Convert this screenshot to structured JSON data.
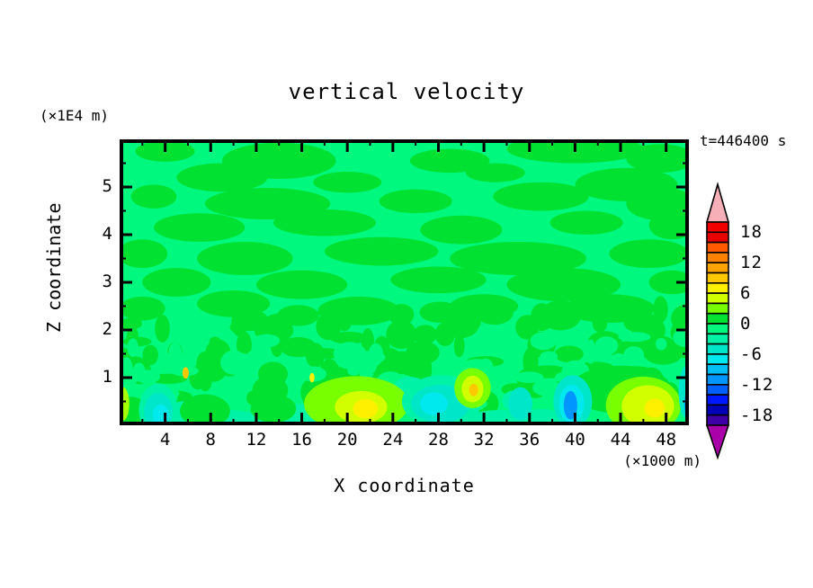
{
  "title": "vertical velocity",
  "time_label": "t=446400 s",
  "y_axis": {
    "label": "Z coordinate",
    "unit": "(×1E4 m)",
    "ticks": [
      "1",
      "2",
      "3",
      "4",
      "5"
    ]
  },
  "x_axis": {
    "label": "X coordinate",
    "unit": "(×1000 m)",
    "ticks": [
      "4",
      "8",
      "12",
      "16",
      "20",
      "24",
      "28",
      "32",
      "36",
      "40",
      "44",
      "48"
    ]
  },
  "colorbar": {
    "labels": [
      "18",
      "12",
      "6",
      "0",
      "-6",
      "-12",
      "-18"
    ],
    "colors": [
      "#F20000",
      "#E80000",
      "#FF5A00",
      "#FF8200",
      "#FFA300",
      "#FFC800",
      "#FFF000",
      "#D2FF00",
      "#78FF00",
      "#00E132",
      "#00F87E",
      "#00F2A6",
      "#00E6C8",
      "#00E9EE",
      "#00BFF5",
      "#0096FF",
      "#0060FF",
      "#0018FF",
      "#0000B9",
      "#4000A8"
    ],
    "arrow_top_color": "#F7AFB7",
    "arrow_bottom_color": "#AA00AA"
  },
  "chart_data": {
    "type": "heatmap",
    "title": "vertical velocity",
    "time": "t=446400 s",
    "xlabel": "X coordinate (×1000 m)",
    "ylabel": "Z coordinate (×1E4 m)",
    "x_range": [
      0,
      50
    ],
    "z_range": [
      0,
      6
    ],
    "x_major_tick": 4,
    "x_minor_tick": 2,
    "z_major_tick": 1,
    "z_minor_tick": 0.5,
    "level_min": -20,
    "level_max": 20,
    "contour_interval": 2,
    "background_level_color": "#00F87E",
    "streak_level_color": "#00E132",
    "description": "Vertical velocity field: mostly near-zero (0 to -2 background, 0 to +2 streaks). Elongated weak-positive streaks aloft; turbulent speckle below z=2; stronger updrafts (+4..+8, yellow) and downdrafts (-4..-12, cyan/blue) near the surface.",
    "streaks": [
      [
        4,
        5.75,
        2.6,
        0.22
      ],
      [
        14,
        5.55,
        5.0,
        0.38
      ],
      [
        29,
        5.55,
        3.5,
        0.25
      ],
      [
        40,
        5.8,
        6.0,
        0.3
      ],
      [
        47.5,
        5.6,
        3.0,
        0.3
      ],
      [
        9,
        5.2,
        4.0,
        0.3
      ],
      [
        20,
        5.1,
        3.0,
        0.22
      ],
      [
        33,
        5.3,
        2.6,
        0.2
      ],
      [
        44.5,
        5.05,
        4.5,
        0.35
      ],
      [
        3,
        4.8,
        2.0,
        0.25
      ],
      [
        13,
        4.65,
        5.5,
        0.33
      ],
      [
        26,
        4.7,
        3.2,
        0.25
      ],
      [
        37,
        4.8,
        4.2,
        0.3
      ],
      [
        47.5,
        4.65,
        3.0,
        0.35
      ],
      [
        7,
        4.15,
        4.0,
        0.3
      ],
      [
        18,
        4.25,
        4.5,
        0.28
      ],
      [
        30,
        4.1,
        3.6,
        0.3
      ],
      [
        41,
        4.25,
        3.2,
        0.25
      ],
      [
        48.5,
        4.2,
        2.0,
        0.3
      ],
      [
        2,
        3.6,
        2.2,
        0.3
      ],
      [
        11,
        3.5,
        4.2,
        0.35
      ],
      [
        23,
        3.65,
        5.0,
        0.3
      ],
      [
        35,
        3.5,
        6.0,
        0.35
      ],
      [
        46.5,
        3.6,
        3.5,
        0.3
      ],
      [
        5,
        3.0,
        3.0,
        0.3
      ],
      [
        16,
        2.95,
        4.0,
        0.3
      ],
      [
        28,
        3.05,
        4.2,
        0.28
      ],
      [
        39,
        2.95,
        5.0,
        0.35
      ],
      [
        48.5,
        3.0,
        2.0,
        0.25
      ],
      [
        2,
        2.45,
        2.0,
        0.25
      ],
      [
        10,
        2.55,
        3.2,
        0.28
      ],
      [
        21,
        2.4,
        3.6,
        0.3
      ],
      [
        32,
        2.5,
        3.0,
        0.25
      ],
      [
        43,
        2.45,
        4.0,
        0.3
      ]
    ],
    "anomalies": [
      [
        8,
        0.12,
        4.5,
        0.22,
        "#00F2A6"
      ],
      [
        14,
        0.1,
        3.0,
        0.18,
        "#00F2A6"
      ],
      [
        33.5,
        0.12,
        3.2,
        0.2,
        "#00F2A6"
      ],
      [
        37,
        0.16,
        2.0,
        0.18,
        "#00F2A6"
      ],
      [
        1.0,
        0.25,
        1.6,
        0.35,
        "#00E132"
      ],
      [
        7.5,
        0.3,
        2.2,
        0.35,
        "#00E132"
      ],
      [
        13.5,
        0.35,
        2.0,
        0.3,
        "#00E132"
      ],
      [
        44,
        0.75,
        4.5,
        0.5,
        "#00E132"
      ],
      [
        0.3,
        0.45,
        0.55,
        0.35,
        "#A6FF00"
      ],
      [
        3.4,
        0.32,
        1.7,
        0.55,
        "#00F2A6"
      ],
      [
        3.4,
        0.28,
        1.25,
        0.4,
        "#00E6C8"
      ],
      [
        3.6,
        0.22,
        0.7,
        0.22,
        "#00E9EE"
      ],
      [
        25.5,
        0.72,
        1.6,
        0.3,
        "#00F2A6"
      ],
      [
        20.8,
        0.45,
        4.6,
        0.58,
        "#78FF00"
      ],
      [
        21.2,
        0.38,
        2.3,
        0.34,
        "#D2FF00"
      ],
      [
        21.6,
        0.35,
        1.1,
        0.2,
        "#FFF000"
      ],
      [
        28.3,
        0.5,
        3.5,
        0.55,
        "#00F2A6"
      ],
      [
        28.2,
        0.45,
        2.6,
        0.4,
        "#00E6C8"
      ],
      [
        27.6,
        0.45,
        1.2,
        0.24,
        "#00E9EE"
      ],
      [
        31.0,
        0.78,
        1.6,
        0.42,
        "#78FF00"
      ],
      [
        31.0,
        0.76,
        0.95,
        0.28,
        "#D2FF00"
      ],
      [
        31.1,
        0.74,
        0.4,
        0.13,
        "#FFC800"
      ],
      [
        35.2,
        0.45,
        1.05,
        0.35,
        "#00E6C8"
      ],
      [
        39.8,
        0.5,
        1.7,
        0.55,
        "#00E6C8"
      ],
      [
        39.7,
        0.45,
        1.1,
        0.4,
        "#00E9EE"
      ],
      [
        39.6,
        0.42,
        0.6,
        0.3,
        "#0096FF"
      ],
      [
        46.0,
        0.42,
        3.3,
        0.6,
        "#78FF00"
      ],
      [
        46.4,
        0.4,
        2.3,
        0.44,
        "#D2FF00"
      ],
      [
        47.0,
        0.36,
        0.9,
        0.2,
        "#FFF000"
      ],
      [
        49.8,
        0.7,
        0.7,
        0.55,
        "#00E6C8"
      ],
      [
        50.0,
        0.45,
        0.4,
        0.3,
        "#0096FF"
      ],
      [
        5.8,
        1.1,
        0.28,
        0.12,
        "#FFC800"
      ],
      [
        16.9,
        1.0,
        0.22,
        0.1,
        "#FFF000"
      ]
    ],
    "speckle": {
      "seed": 7,
      "dark_count": 110,
      "light_count": 48,
      "aqua_count": 12,
      "band_z": [
        0.45,
        2.45
      ],
      "note": "turbulent mottling rendered procedurally"
    }
  }
}
